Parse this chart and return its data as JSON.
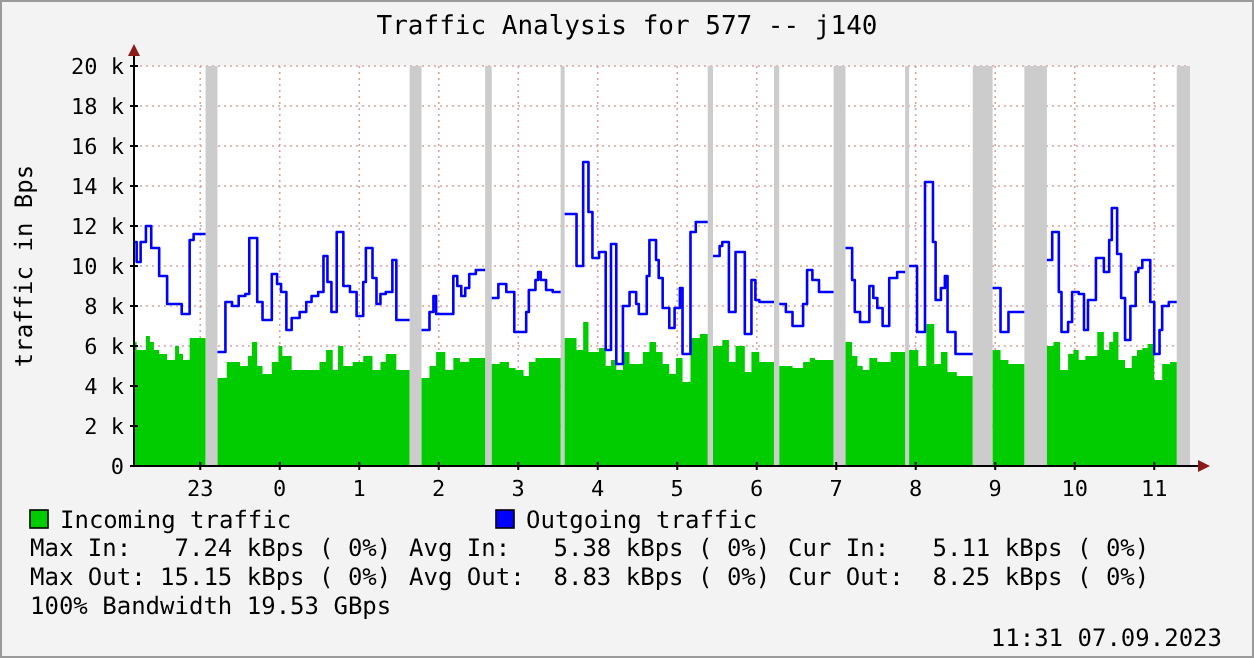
{
  "chart_data": {
    "type": "step",
    "title": "Traffic Analysis for 577 -- j140",
    "ylabel": "traffic in Bps",
    "xlim": [
      "2023-09-06T22:10",
      "2023-09-07T11:27"
    ],
    "xticks": [
      {
        "value": "2023-09-06T23:00",
        "label": "23"
      },
      {
        "value": "2023-09-07T00:00",
        "label": "0"
      },
      {
        "value": "2023-09-07T01:00",
        "label": "1"
      },
      {
        "value": "2023-09-07T02:00",
        "label": "2"
      },
      {
        "value": "2023-09-07T03:00",
        "label": "3"
      },
      {
        "value": "2023-09-07T04:00",
        "label": "4"
      },
      {
        "value": "2023-09-07T05:00",
        "label": "5"
      },
      {
        "value": "2023-09-07T06:00",
        "label": "6"
      },
      {
        "value": "2023-09-07T07:00",
        "label": "7"
      },
      {
        "value": "2023-09-07T08:00",
        "label": "8"
      },
      {
        "value": "2023-09-07T09:00",
        "label": "9"
      },
      {
        "value": "2023-09-07T10:00",
        "label": "10"
      },
      {
        "value": "2023-09-07T11:00",
        "label": "11"
      }
    ],
    "ylim": [
      0,
      20000
    ],
    "yticks": [
      0,
      {
        "value": 2000,
        "label": "2 k"
      },
      {
        "value": 4000,
        "label": "4 k"
      },
      {
        "value": 6000,
        "label": "6 k"
      },
      {
        "value": 8000,
        "label": "8 k"
      },
      {
        "value": 10000,
        "label": "10 k"
      },
      {
        "value": 12000,
        "label": "12 k"
      },
      {
        "value": 14000,
        "label": "14 k"
      },
      {
        "value": 16000,
        "label": "16 k"
      },
      {
        "value": 18000,
        "label": "18 k"
      },
      {
        "value": 20000,
        "label": "20 k"
      }
    ],
    "grid": true,
    "legend": "bottom",
    "bands": [
      {
        "axis": "x",
        "from": "2023-09-06T23:04",
        "to": "2023-09-06T23:13",
        "color": "#cccccc"
      },
      {
        "axis": "x",
        "from": "2023-09-07T01:38",
        "to": "2023-09-07T01:47",
        "color": "#cccccc"
      },
      {
        "axis": "x",
        "from": "2023-09-07T02:35",
        "to": "2023-09-07T02:40",
        "color": "#cccccc"
      },
      {
        "axis": "x",
        "from": "2023-09-07T03:32",
        "to": "2023-09-07T03:35",
        "color": "#cccccc"
      },
      {
        "axis": "x",
        "from": "2023-09-07T05:23",
        "to": "2023-09-07T05:27",
        "color": "#cccccc"
      },
      {
        "axis": "x",
        "from": "2023-09-07T06:13",
        "to": "2023-09-07T06:17",
        "color": "#cccccc"
      },
      {
        "axis": "x",
        "from": "2023-09-07T06:58",
        "to": "2023-09-07T07:07",
        "color": "#cccccc"
      },
      {
        "axis": "x",
        "from": "2023-09-07T07:52",
        "to": "2023-09-07T07:55",
        "color": "#cccccc"
      },
      {
        "axis": "x",
        "from": "2023-09-07T08:43",
        "to": "2023-09-07T08:58",
        "color": "#cccccc"
      },
      {
        "axis": "x",
        "from": "2023-09-07T09:22",
        "to": "2023-09-07T09:39",
        "color": "#cccccc"
      },
      {
        "axis": "x",
        "from": "2023-09-07T11:17",
        "to": "2023-09-07T11:27",
        "color": "#cccccc"
      }
    ],
    "series": [
      {
        "name": "Incoming traffic",
        "type": "area",
        "color": "#00cc00",
        "x": [
          "2023-09-06T22:10",
          "2023-09-06T22:12",
          "2023-09-06T22:19",
          "2023-09-06T22:22",
          "2023-09-06T22:25",
          "2023-09-06T22:29",
          "2023-09-06T22:35",
          "2023-09-06T22:41",
          "2023-09-06T22:44",
          "2023-09-06T22:47",
          "2023-09-06T22:52",
          "2023-09-06T23:04",
          "2023-09-06T23:08",
          "2023-09-06T23:13",
          "2023-09-06T23:20",
          "2023-09-06T23:30",
          "2023-09-06T23:36",
          "2023-09-06T23:39",
          "2023-09-06T23:43",
          "2023-09-06T23:47",
          "2023-09-06T23:54",
          "2023-09-06T23:59",
          "2023-09-07T00:02",
          "2023-09-07T00:09",
          "2023-09-07T00:30",
          "2023-09-07T00:35",
          "2023-09-07T00:40",
          "2023-09-07T00:44",
          "2023-09-07T00:48",
          "2023-09-07T00:55",
          "2023-09-07T01:03",
          "2023-09-07T01:10",
          "2023-09-07T01:16",
          "2023-09-07T01:20",
          "2023-09-07T01:28",
          "2023-09-07T01:38",
          "2023-09-07T01:42",
          "2023-09-07T01:47",
          "2023-09-07T01:53",
          "2023-09-07T01:58",
          "2023-09-07T02:05",
          "2023-09-07T02:11",
          "2023-09-07T02:16",
          "2023-09-07T02:23",
          "2023-09-07T02:35",
          "2023-09-07T02:37",
          "2023-09-07T02:40",
          "2023-09-07T02:46",
          "2023-09-07T02:53",
          "2023-09-07T02:58",
          "2023-09-07T03:04",
          "2023-09-07T03:08",
          "2023-09-07T03:13",
          "2023-09-07T03:32",
          "2023-09-07T03:34",
          "2023-09-07T03:35",
          "2023-09-07T03:44",
          "2023-09-07T03:49",
          "2023-09-07T03:53",
          "2023-09-07T04:01",
          "2023-09-07T04:06",
          "2023-09-07T04:10",
          "2023-09-07T04:14",
          "2023-09-07T04:19",
          "2023-09-07T04:24",
          "2023-09-07T04:34",
          "2023-09-07T04:39",
          "2023-09-07T04:44",
          "2023-09-07T04:49",
          "2023-09-07T04:54",
          "2023-09-07T04:59",
          "2023-09-07T05:04",
          "2023-09-07T05:10",
          "2023-09-07T05:17",
          "2023-09-07T05:23",
          "2023-09-07T05:25",
          "2023-09-07T05:27",
          "2023-09-07T05:34",
          "2023-09-07T05:39",
          "2023-09-07T05:44",
          "2023-09-07T05:51",
          "2023-09-07T05:56",
          "2023-09-07T06:02",
          "2023-09-07T06:13",
          "2023-09-07T06:14",
          "2023-09-07T06:17",
          "2023-09-07T06:27",
          "2023-09-07T06:35",
          "2023-09-07T06:40",
          "2023-09-07T06:44",
          "2023-09-07T06:58",
          "2023-09-07T07:02",
          "2023-09-07T07:07",
          "2023-09-07T07:12",
          "2023-09-07T07:16",
          "2023-09-07T07:20",
          "2023-09-07T07:25",
          "2023-09-07T07:31",
          "2023-09-07T07:41",
          "2023-09-07T07:52",
          "2023-09-07T07:53",
          "2023-09-07T07:55",
          "2023-09-07T08:02",
          "2023-09-07T08:08",
          "2023-09-07T08:14",
          "2023-09-07T08:19",
          "2023-09-07T08:24",
          "2023-09-07T08:31",
          "2023-09-07T08:43",
          "2023-09-07T08:51",
          "2023-09-07T08:58",
          "2023-09-07T09:04",
          "2023-09-07T09:10",
          "2023-09-07T09:22",
          "2023-09-07T09:30",
          "2023-09-07T09:39",
          "2023-09-07T09:44",
          "2023-09-07T09:49",
          "2023-09-07T09:55",
          "2023-09-07T09:59",
          "2023-09-07T10:03",
          "2023-09-07T10:08",
          "2023-09-07T10:17",
          "2023-09-07T10:22",
          "2023-09-07T10:26",
          "2023-09-07T10:29",
          "2023-09-07T10:33",
          "2023-09-07T10:38",
          "2023-09-07T10:43",
          "2023-09-07T10:47",
          "2023-09-07T10:51",
          "2023-09-07T10:55",
          "2023-09-07T11:00",
          "2023-09-07T11:06",
          "2023-09-07T11:12",
          "2023-09-07T11:17"
        ],
        "values": [
          6200,
          5800,
          6500,
          6200,
          5800,
          5600,
          5300,
          6000,
          5600,
          5300,
          6400,
          6400,
          null,
          4400,
          5200,
          5000,
          5500,
          6200,
          5000,
          4600,
          5200,
          6000,
          5500,
          4800,
          5200,
          5800,
          4800,
          6000,
          5000,
          5200,
          5500,
          4800,
          5200,
          5600,
          4800,
          4800,
          null,
          4400,
          5000,
          5700,
          4800,
          5400,
          5200,
          5400,
          5400,
          null,
          5100,
          5200,
          4900,
          4800,
          4500,
          5200,
          5400,
          5400,
          null,
          6400,
          5800,
          7200,
          5700,
          5900,
          5000,
          5300,
          4800,
          5700,
          5100,
          5700,
          6200,
          5700,
          5100,
          4600,
          5400,
          4200,
          6400,
          6600,
          6600,
          null,
          6000,
          6300,
          5200,
          6000,
          4700,
          5700,
          5200,
          5200,
          null,
          5000,
          4900,
          5200,
          5400,
          5300,
          5300,
          null,
          6200,
          5500,
          5000,
          4800,
          5400,
          5200,
          5700,
          5700,
          null,
          5800,
          5000,
          7100,
          5100,
          5700,
          4700,
          4500,
          4500,
          null,
          5800,
          5300,
          5100,
          5100,
          null,
          6000,
          6200,
          4800,
          5600,
          5800,
          5300,
          5500,
          6700,
          5800,
          6200,
          6700,
          5300,
          4900,
          5500,
          5800,
          5900,
          6100,
          4300,
          5100,
          5200,
          5200
        ]
      },
      {
        "name": "Outgoing traffic",
        "color": "#0000ff",
        "x": [
          "2023-09-06T22:10",
          "2023-09-06T22:12",
          "2023-09-06T22:15",
          "2023-09-06T22:19",
          "2023-09-06T22:23",
          "2023-09-06T22:29",
          "2023-09-06T22:35",
          "2023-09-06T22:46",
          "2023-09-06T22:52",
          "2023-09-06T22:55",
          "2023-09-06T23:04",
          "2023-09-06T23:08",
          "2023-09-06T23:13",
          "2023-09-06T23:19",
          "2023-09-06T23:24",
          "2023-09-06T23:29",
          "2023-09-06T23:34",
          "2023-09-06T23:37",
          "2023-09-06T23:43",
          "2023-09-06T23:47",
          "2023-09-06T23:54",
          "2023-09-06T23:58",
          "2023-09-07T00:01",
          "2023-09-07T00:05",
          "2023-09-07T00:09",
          "2023-09-07T00:15",
          "2023-09-07T00:20",
          "2023-09-07T00:24",
          "2023-09-07T00:29",
          "2023-09-07T00:33",
          "2023-09-07T00:36",
          "2023-09-07T00:39",
          "2023-09-07T00:43",
          "2023-09-07T00:48",
          "2023-09-07T00:53",
          "2023-09-07T00:58",
          "2023-09-07T01:03",
          "2023-09-07T01:05",
          "2023-09-07T01:10",
          "2023-09-07T01:13",
          "2023-09-07T01:16",
          "2023-09-07T01:20",
          "2023-09-07T01:25",
          "2023-09-07T01:28",
          "2023-09-07T01:38",
          "2023-09-07T01:42",
          "2023-09-07T01:47",
          "2023-09-07T01:53",
          "2023-09-07T01:56",
          "2023-09-07T01:58",
          "2023-09-07T02:11",
          "2023-09-07T02:14",
          "2023-09-07T02:17",
          "2023-09-07T02:20",
          "2023-09-07T02:23",
          "2023-09-07T02:28",
          "2023-09-07T02:35",
          "2023-09-07T02:37",
          "2023-09-07T02:40",
          "2023-09-07T02:45",
          "2023-09-07T02:51",
          "2023-09-07T02:57",
          "2023-09-07T03:06",
          "2023-09-07T03:08",
          "2023-09-07T03:13",
          "2023-09-07T03:15",
          "2023-09-07T03:17",
          "2023-09-07T03:21",
          "2023-09-07T03:26",
          "2023-09-07T03:32",
          "2023-09-07T03:34",
          "2023-09-07T03:35",
          "2023-09-07T03:44",
          "2023-09-07T03:49",
          "2023-09-07T03:53",
          "2023-09-07T03:56",
          "2023-09-07T04:01",
          "2023-09-07T04:06",
          "2023-09-07T04:10",
          "2023-09-07T04:14",
          "2023-09-07T04:19",
          "2023-09-07T04:24",
          "2023-09-07T04:29",
          "2023-09-07T04:31",
          "2023-09-07T04:37",
          "2023-09-07T04:39",
          "2023-09-07T04:44",
          "2023-09-07T04:46",
          "2023-09-07T04:49",
          "2023-09-07T04:54",
          "2023-09-07T04:58",
          "2023-09-07T05:02",
          "2023-09-07T05:04",
          "2023-09-07T05:10",
          "2023-09-07T05:14",
          "2023-09-07T05:23",
          "2023-09-07T05:25",
          "2023-09-07T05:27",
          "2023-09-07T05:32",
          "2023-09-07T05:34",
          "2023-09-07T05:39",
          "2023-09-07T05:44",
          "2023-09-07T05:51",
          "2023-09-07T05:56",
          "2023-09-07T05:59",
          "2023-09-07T06:02",
          "2023-09-07T06:13",
          "2023-09-07T06:14",
          "2023-09-07T06:17",
          "2023-09-07T06:22",
          "2023-09-07T06:27",
          "2023-09-07T06:35",
          "2023-09-07T06:38",
          "2023-09-07T06:42",
          "2023-09-07T06:47",
          "2023-09-07T06:58",
          "2023-09-07T07:02",
          "2023-09-07T07:07",
          "2023-09-07T07:12",
          "2023-09-07T07:14",
          "2023-09-07T07:18",
          "2023-09-07T07:25",
          "2023-09-07T07:28",
          "2023-09-07T07:31",
          "2023-09-07T07:35",
          "2023-09-07T07:40",
          "2023-09-07T07:46",
          "2023-09-07T07:52",
          "2023-09-07T07:53",
          "2023-09-07T07:55",
          "2023-09-07T08:01",
          "2023-09-07T08:07",
          "2023-09-07T08:13",
          "2023-09-07T08:15",
          "2023-09-07T08:19",
          "2023-09-07T08:22",
          "2023-09-07T08:24",
          "2023-09-07T08:30",
          "2023-09-07T08:43",
          "2023-09-07T08:51",
          "2023-09-07T08:58",
          "2023-09-07T09:04",
          "2023-09-07T09:10",
          "2023-09-07T09:22",
          "2023-09-07T09:30",
          "2023-09-07T09:39",
          "2023-09-07T09:43",
          "2023-09-07T09:48",
          "2023-09-07T09:50",
          "2023-09-07T09:55",
          "2023-09-07T09:58",
          "2023-09-07T10:03",
          "2023-09-07T10:07",
          "2023-09-07T10:10",
          "2023-09-07T10:16",
          "2023-09-07T10:22",
          "2023-09-07T10:26",
          "2023-09-07T10:28",
          "2023-09-07T10:32",
          "2023-09-07T10:35",
          "2023-09-07T10:38",
          "2023-09-07T10:42",
          "2023-09-07T10:46",
          "2023-09-07T10:48",
          "2023-09-07T10:51",
          "2023-09-07T10:57",
          "2023-09-07T11:00",
          "2023-09-07T11:04",
          "2023-09-07T11:06",
          "2023-09-07T11:11",
          "2023-09-07T11:17"
        ],
        "values": [
          11200,
          10200,
          11200,
          12000,
          10900,
          9500,
          8100,
          7600,
          11300,
          11600,
          11600,
          null,
          5700,
          8200,
          8000,
          8500,
          8600,
          11400,
          8200,
          7300,
          9600,
          9100,
          8700,
          6800,
          7400,
          7700,
          8200,
          8500,
          8700,
          10500,
          9200,
          7700,
          11700,
          9000,
          8700,
          7500,
          9200,
          10900,
          9400,
          8100,
          8600,
          8700,
          10300,
          7300,
          7300,
          null,
          6800,
          7700,
          8500,
          7600,
          9500,
          9000,
          8500,
          8900,
          9600,
          9800,
          9800,
          null,
          8400,
          9100,
          8700,
          6700,
          7700,
          8800,
          9300,
          9700,
          9300,
          8800,
          8700,
          8700,
          null,
          12600,
          10000,
          15200,
          12700,
          10400,
          10700,
          5800,
          11100,
          5100,
          8000,
          8700,
          8100,
          7600,
          9500,
          11300,
          10300,
          9400,
          7900,
          6900,
          7900,
          8900,
          5600,
          11700,
          12200,
          12200,
          null,
          10500,
          11000,
          11200,
          7700,
          10700,
          6600,
          9300,
          8300,
          8200,
          8200,
          null,
          8100,
          7700,
          7000,
          8100,
          9800,
          9300,
          8700,
          8700,
          null,
          10900,
          9300,
          7700,
          7200,
          9000,
          8400,
          7900,
          7000,
          9400,
          9700,
          9700,
          null,
          10000,
          6700,
          14200,
          11200,
          8300,
          8900,
          9500,
          6700,
          5600,
          5600,
          null,
          8900,
          6700,
          7700,
          7700,
          null,
          10300,
          11700,
          8700,
          6700,
          7200,
          8700,
          8600,
          6800,
          8300,
          10400,
          9700,
          11300,
          12900,
          10600,
          8400,
          6300,
          8000,
          9700,
          9900,
          10300,
          8200,
          5600,
          6800,
          8000,
          8200,
          8200
        ]
      }
    ],
    "annotations": [
      "Max In:   7.24 kBps ( 0%)",
      "Avg In:   5.38 kBps ( 0%)",
      "Cur In:   5.11 kBps ( 0%)",
      "Max Out: 15.15 kBps ( 0%)",
      "Avg Out:  8.83 kBps ( 0%)",
      "Cur Out:  8.25 kBps ( 0%)",
      "100% Bandwidth 19.53 GBps",
      "11:31 07.09.2023"
    ]
  }
}
